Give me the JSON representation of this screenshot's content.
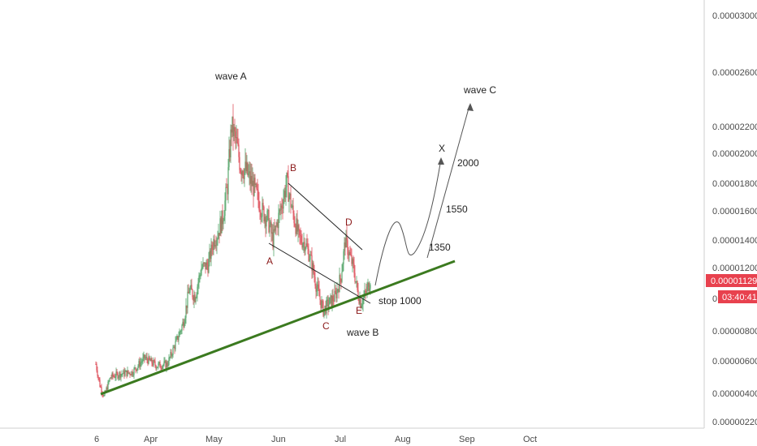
{
  "chart_data": {
    "type": "candlestick",
    "colors": {
      "up": "#5aa86e",
      "down": "#e05560",
      "trendline": "#3b7a1f",
      "price_badge": "#e8414e",
      "axis_text": "#4a4a4a",
      "annotation_dark": "#222222",
      "annotation_red": "#8b1a1a"
    },
    "x_axis": {
      "ticks": [
        "6",
        "Apr",
        "May",
        "Jun",
        "Jul",
        "Aug",
        "Sep",
        "Oct"
      ]
    },
    "y_axis": {
      "position": "right",
      "ticks": [
        "0.00003000",
        "0.00002600",
        "0.00002200",
        "0.00002000",
        "0.00001800",
        "0.00001600",
        "0.00001400",
        "0.00001200",
        "0.00000800",
        "0.00000600",
        "0.00000400",
        "0.00000220"
      ],
      "occluded_tick": "0"
    },
    "last_price": {
      "value": "0.00001129",
      "countdown": "03:40:41"
    },
    "price_path": [
      [
        0,
        5.8e-06
      ],
      [
        5,
        4.5e-06
      ],
      [
        10,
        3.8e-06
      ],
      [
        18,
        5e-06
      ],
      [
        30,
        5.2e-06
      ],
      [
        45,
        5.3e-06
      ],
      [
        60,
        6.2e-06
      ],
      [
        75,
        5.7e-06
      ],
      [
        88,
        5.8e-06
      ],
      [
        100,
        7.4e-06
      ],
      [
        108,
        8.6e-06
      ],
      [
        115,
        1.06e-05
      ],
      [
        122,
        1.02e-05
      ],
      [
        130,
        1.2e-05
      ],
      [
        138,
        1.22e-05
      ],
      [
        145,
        1.4e-05
      ],
      [
        150,
        1.45e-05
      ],
      [
        156,
        1.55e-05
      ],
      [
        162,
        1.78e-05
      ],
      [
        167,
        2.2e-05
      ],
      [
        172,
        2.1e-05
      ],
      [
        178,
        1.92e-05
      ],
      [
        185,
        1.88e-05
      ],
      [
        195,
        1.76e-05
      ],
      [
        205,
        1.6e-05
      ],
      [
        212,
        1.54e-05
      ],
      [
        218,
        1.4e-05
      ],
      [
        226,
        1.58e-05
      ],
      [
        235,
        1.8e-05
      ],
      [
        242,
        1.6e-05
      ],
      [
        250,
        1.42e-05
      ],
      [
        258,
        1.38e-05
      ],
      [
        265,
        1.25e-05
      ],
      [
        272,
        1.07e-05
      ],
      [
        280,
        9.3e-06
      ],
      [
        288,
        9.8e-06
      ],
      [
        295,
        1.02e-05
      ],
      [
        302,
        1.15e-05
      ],
      [
        307,
        1.4e-05
      ],
      [
        312,
        1.3e-05
      ],
      [
        318,
        1.18e-05
      ],
      [
        322,
        1.05e-05
      ],
      [
        326,
        9.8e-06
      ],
      [
        330,
        1.01e-05
      ],
      [
        334,
        1.06e-05
      ],
      [
        338,
        1.13e-05
      ]
    ],
    "annotations": {
      "wave_a": "wave A",
      "wave_b": "wave B",
      "wave_c": "wave C",
      "label_a": "A",
      "label_b": "B",
      "label_c": "C",
      "label_d": "D",
      "label_e": "E",
      "label_x": "X",
      "stop": "stop 1000",
      "target_1350": "1350",
      "target_1550": "1550",
      "target_2000": "2000"
    }
  }
}
